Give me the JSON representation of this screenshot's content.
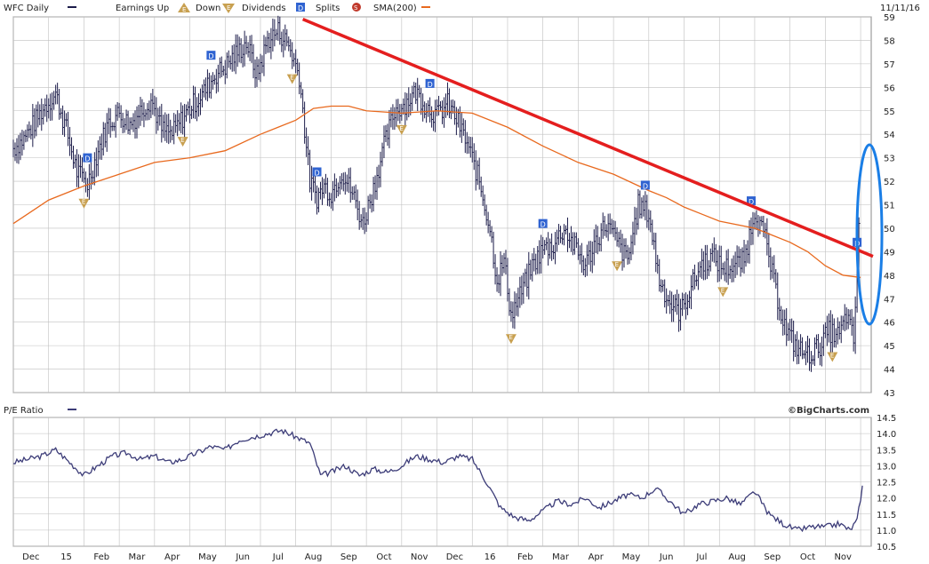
{
  "header": {
    "symbol_label": "WFC Daily",
    "earnings_up_label": "Earnings Up",
    "down_label": "Down",
    "dividends_label": "Dividends",
    "splits_label": "Splits",
    "sma_label": "SMA(200)",
    "date": "11/11/16",
    "pe_label": "P/E Ratio",
    "watermark": "©BigCharts.com"
  },
  "colors": {
    "price": "#1c1c4a",
    "sma": "#e8691e",
    "trendline": "#e41e1e",
    "ellipse": "#1a7ee6",
    "pe_line": "#3c3c78",
    "grid": "#bfbfbf",
    "dividend_marker": "#2f63d1",
    "earnings_marker": "#c8a050",
    "split_marker": "#c0392b"
  },
  "icons": {
    "earnings_up": "triangle-up-E-icon",
    "earnings_down": "triangle-down-E-icon",
    "dividend": "square-D-icon",
    "split": "circle-S-icon"
  },
  "chart_data": [
    {
      "type": "line",
      "title": "WFC Daily",
      "x_tick_labels": [
        "Dec",
        "15",
        "Feb",
        "Mar",
        "Apr",
        "May",
        "Jun",
        "Jul",
        "Aug",
        "Sep",
        "Oct",
        "Nov",
        "Dec",
        "16",
        "Feb",
        "Mar",
        "Apr",
        "May",
        "Jun",
        "Jul",
        "Aug",
        "Sep",
        "Oct",
        "Nov"
      ],
      "x_tick_t": [
        0.5,
        1.5,
        2.5,
        3.5,
        4.5,
        5.5,
        6.5,
        7.5,
        8.5,
        9.5,
        10.5,
        11.5,
        12.5,
        13.5,
        14.5,
        15.5,
        16.5,
        17.5,
        18.5,
        19.5,
        20.5,
        21.5,
        22.5,
        23.5
      ],
      "t_range": [
        0,
        24.3
      ],
      "ylim": [
        43,
        59
      ],
      "y_ticks": [
        43,
        44,
        45,
        46,
        47,
        48,
        49,
        50,
        51,
        52,
        53,
        54,
        55,
        56,
        57,
        58,
        59
      ],
      "grid": true,
      "series": [
        {
          "name": "WFC Daily",
          "style": "daily-bars",
          "t": [
            0,
            0.3,
            0.6,
            0.9,
            1.2,
            1.5,
            1.8,
            2.1,
            2.4,
            2.7,
            3,
            3.3,
            3.6,
            3.9,
            4.2,
            4.5,
            4.8,
            5.1,
            5.4,
            5.7,
            6,
            6.3,
            6.6,
            6.9,
            7.2,
            7.5,
            7.8,
            8.1,
            8.4,
            8.6,
            8.8,
            9,
            9.3,
            9.6,
            9.9,
            10.2,
            10.5,
            10.8,
            11.1,
            11.4,
            11.7,
            12,
            12.3,
            12.6,
            12.9,
            13.2,
            13.5,
            13.7,
            13.9,
            14.1,
            14.4,
            14.7,
            15,
            15.3,
            15.6,
            15.9,
            16.2,
            16.5,
            16.8,
            17.1,
            17.4,
            17.7,
            18,
            18.3,
            18.6,
            18.9,
            19.2,
            19.5,
            19.8,
            20.1,
            20.4,
            20.7,
            21,
            21.3,
            21.6,
            21.9,
            22.2,
            22.5,
            22.8,
            23.1,
            23.4,
            23.6,
            23.8,
            24
          ],
          "values": [
            53.4,
            53.8,
            54.5,
            55.2,
            55.7,
            54.2,
            52.4,
            51.9,
            53.3,
            54.5,
            54.9,
            54.4,
            55.0,
            55.5,
            54.2,
            54.0,
            54.7,
            55.3,
            55.8,
            56.5,
            56.9,
            57.4,
            57.9,
            56.5,
            58.0,
            58.4,
            57.8,
            56.5,
            52.0,
            51.3,
            51.8,
            51.5,
            52.4,
            51.5,
            50.2,
            51.7,
            53.5,
            55.0,
            55.3,
            55.8,
            55.2,
            54.8,
            55.3,
            54.5,
            53.4,
            52.0,
            50.0,
            47.8,
            48.6,
            46.3,
            47.3,
            48.4,
            49.1,
            49.3,
            50.0,
            49.2,
            48.4,
            49.5,
            50.2,
            49.4,
            48.6,
            51.0,
            50.6,
            47.8,
            46.8,
            46.4,
            47.5,
            48.5,
            48.8,
            48.3,
            48.4,
            48.6,
            50.8,
            49.5,
            47.3,
            45.6,
            44.9,
            44.6,
            44.9,
            45.6,
            45.4,
            46.3,
            45.2,
            51.4
          ]
        },
        {
          "name": "SMA(200)",
          "t": [
            0,
            1,
            2,
            3,
            4,
            5,
            6,
            7,
            7.5,
            8,
            8.5,
            9,
            9.5,
            10,
            11,
            12,
            13,
            14,
            15,
            16,
            17,
            18,
            18.5,
            19,
            19.5,
            20,
            21,
            21.5,
            22,
            22.5,
            23,
            23.5,
            24
          ],
          "values": [
            50.2,
            51.2,
            51.8,
            52.3,
            52.8,
            53.0,
            53.3,
            54.0,
            54.3,
            54.6,
            55.1,
            55.2,
            55.2,
            55.0,
            54.9,
            55.0,
            54.9,
            54.3,
            53.5,
            52.8,
            52.3,
            51.6,
            51.3,
            50.9,
            50.6,
            50.3,
            50.0,
            49.7,
            49.4,
            49.0,
            48.4,
            48.0,
            47.9
          ]
        },
        {
          "name": "Trend line",
          "t": [
            8.2,
            24.35
          ],
          "values": [
            58.9,
            48.8
          ]
        }
      ],
      "dividends_t": [
        2.1,
        5.6,
        8.6,
        11.8,
        15.0,
        17.9,
        20.9,
        23.9
      ],
      "earnings_t": [
        2.0,
        4.8,
        7.9,
        11.0,
        14.1,
        17.1,
        20.1,
        23.2
      ]
    },
    {
      "type": "line",
      "title": "P/E Ratio",
      "ylim": [
        10.5,
        14.5
      ],
      "y_ticks": [
        10.5,
        11.0,
        11.5,
        12.0,
        12.5,
        13.0,
        13.5,
        14.0,
        14.5
      ],
      "grid": true,
      "series": [
        {
          "name": "P/E Ratio",
          "t": [
            0,
            0.4,
            0.8,
            1.2,
            1.6,
            2.0,
            2.4,
            2.8,
            3.2,
            3.6,
            4.0,
            4.4,
            4.8,
            5.2,
            5.6,
            6.0,
            6.4,
            6.8,
            7.2,
            7.6,
            8.0,
            8.4,
            8.7,
            9.0,
            9.4,
            9.8,
            10.2,
            10.6,
            11.0,
            11.4,
            11.8,
            12.2,
            12.6,
            13.0,
            13.4,
            13.8,
            14.2,
            14.6,
            15.0,
            15.4,
            15.8,
            16.2,
            16.6,
            17.0,
            17.4,
            17.8,
            18.2,
            18.6,
            19.0,
            19.4,
            19.8,
            20.2,
            20.6,
            21.0,
            21.4,
            21.8,
            22.2,
            22.6,
            23.0,
            23.4,
            23.7,
            23.9,
            24.1
          ],
          "values": [
            13.1,
            13.2,
            13.3,
            13.5,
            13.1,
            12.7,
            13.0,
            13.3,
            13.4,
            13.2,
            13.3,
            13.1,
            13.2,
            13.4,
            13.6,
            13.5,
            13.8,
            13.9,
            14.0,
            14.1,
            13.9,
            13.7,
            12.7,
            12.8,
            13.0,
            12.7,
            12.9,
            12.8,
            13.0,
            13.3,
            13.2,
            13.1,
            13.3,
            13.2,
            12.5,
            11.7,
            11.4,
            11.3,
            11.6,
            11.9,
            11.8,
            12.0,
            11.7,
            11.9,
            12.1,
            12.0,
            12.3,
            11.9,
            11.5,
            11.8,
            11.9,
            12.0,
            11.8,
            12.2,
            11.5,
            11.2,
            11.0,
            11.1,
            11.1,
            11.2,
            11.0,
            11.3,
            12.7
          ]
        }
      ]
    }
  ]
}
